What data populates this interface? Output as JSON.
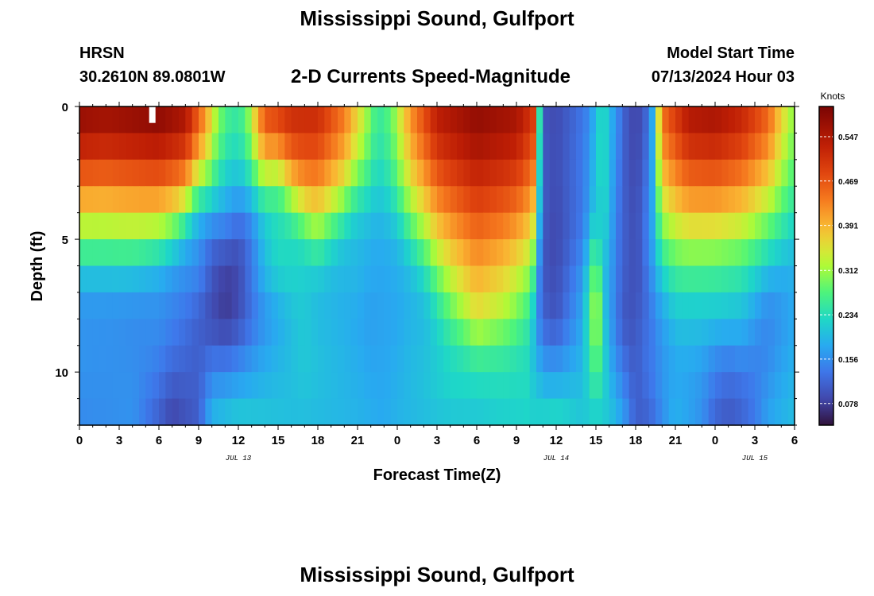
{
  "page": {
    "title_top": "Mississippi Sound, Gulfport",
    "title_bottom": "Mississippi Sound, Gulfport",
    "station_id": "HRSN",
    "station_coords": "30.2610N  89.0801W",
    "plot_title": "2-D Currents Speed-Magnitude",
    "model_label": "Model Start Time",
    "model_value": "07/13/2024 Hour 03"
  },
  "chart_data": {
    "type": "heatmap",
    "title": "2-D Currents Speed-Magnitude",
    "xlabel": "Forecast Time(Z)",
    "ylabel": "Depth (ft)",
    "x_range_hours": [
      0,
      54
    ],
    "x_ticks": [
      {
        "h": 0,
        "label": "0"
      },
      {
        "h": 3,
        "label": "3"
      },
      {
        "h": 6,
        "label": "6"
      },
      {
        "h": 9,
        "label": "9"
      },
      {
        "h": 12,
        "label": "12"
      },
      {
        "h": 15,
        "label": "15"
      },
      {
        "h": 18,
        "label": "18"
      },
      {
        "h": 21,
        "label": "21"
      },
      {
        "h": 24,
        "label": "0"
      },
      {
        "h": 27,
        "label": "3"
      },
      {
        "h": 30,
        "label": "6"
      },
      {
        "h": 33,
        "label": "9"
      },
      {
        "h": 36,
        "label": "12"
      },
      {
        "h": 39,
        "label": "15"
      },
      {
        "h": 42,
        "label": "18"
      },
      {
        "h": 45,
        "label": "21"
      },
      {
        "h": 48,
        "label": "0"
      },
      {
        "h": 51,
        "label": "3"
      },
      {
        "h": 54,
        "label": "6"
      }
    ],
    "date_labels": [
      {
        "h": 12,
        "label": "JUL 13"
      },
      {
        "h": 36,
        "label": "JUL 14"
      },
      {
        "h": 51,
        "label": "JUL 15"
      }
    ],
    "y_range_ft": [
      0,
      12
    ],
    "y_ticks": [
      {
        "v": 0,
        "label": "0"
      },
      {
        "v": 5,
        "label": "5"
      },
      {
        "v": 10,
        "label": "10"
      }
    ],
    "depth_layers": 12,
    "colorbar": {
      "title": "Knots",
      "min": 0.04,
      "max": 0.6,
      "ticks": [
        0.078,
        0.156,
        0.234,
        0.312,
        0.391,
        0.469,
        0.547
      ],
      "tick_labels": [
        "0.078",
        "0.156",
        "0.234",
        "0.312",
        "0.391",
        "0.469",
        "0.547"
      ]
    },
    "knots_surface": [
      [
        0,
        0.58
      ],
      [
        2,
        0.57
      ],
      [
        4,
        0.58
      ],
      [
        6,
        0.59
      ],
      [
        8,
        0.56
      ],
      [
        9.5,
        0.42
      ],
      [
        10.5,
        0.3
      ],
      [
        11.5,
        0.25
      ],
      [
        12.5,
        0.27
      ],
      [
        14,
        0.48
      ],
      [
        16,
        0.52
      ],
      [
        18,
        0.52
      ],
      [
        20,
        0.44
      ],
      [
        21.5,
        0.33
      ],
      [
        22.5,
        0.25
      ],
      [
        23.5,
        0.28
      ],
      [
        25,
        0.42
      ],
      [
        27,
        0.54
      ],
      [
        30,
        0.58
      ],
      [
        33,
        0.56
      ],
      [
        34.3,
        0.5
      ],
      [
        35,
        0.1
      ],
      [
        36,
        0.09
      ],
      [
        37.5,
        0.12
      ],
      [
        38.5,
        0.15
      ],
      [
        39,
        0.2
      ],
      [
        39.5,
        0.24
      ],
      [
        40.5,
        0.16
      ],
      [
        41.5,
        0.09
      ],
      [
        42.5,
        0.09
      ],
      [
        43.2,
        0.16
      ],
      [
        44,
        0.45
      ],
      [
        46,
        0.55
      ],
      [
        48,
        0.56
      ],
      [
        50,
        0.53
      ],
      [
        52,
        0.46
      ],
      [
        53,
        0.37
      ],
      [
        54,
        0.3
      ]
    ],
    "knots_bottom": [
      [
        0,
        0.15
      ],
      [
        4,
        0.16
      ],
      [
        7,
        0.08
      ],
      [
        9,
        0.11
      ],
      [
        10,
        0.2
      ],
      [
        12,
        0.22
      ],
      [
        16,
        0.2
      ],
      [
        21,
        0.19
      ],
      [
        23,
        0.18
      ],
      [
        24,
        0.19
      ],
      [
        27,
        0.2
      ],
      [
        30,
        0.2
      ],
      [
        32,
        0.21
      ],
      [
        34,
        0.22
      ],
      [
        36,
        0.24
      ],
      [
        38,
        0.21
      ],
      [
        40,
        0.21
      ],
      [
        41,
        0.18
      ],
      [
        42,
        0.11
      ],
      [
        43,
        0.11
      ],
      [
        44,
        0.15
      ],
      [
        45,
        0.2
      ],
      [
        47,
        0.16
      ],
      [
        48,
        0.08
      ],
      [
        49,
        0.06
      ],
      [
        50,
        0.1
      ],
      [
        52,
        0.18
      ],
      [
        54,
        0.2
      ]
    ],
    "knots_column_min": [
      [
        0,
        0.17
      ],
      [
        2,
        0.16
      ],
      [
        4,
        0.15
      ],
      [
        6,
        0.15
      ],
      [
        8,
        0.13
      ],
      [
        9,
        0.12
      ],
      [
        10,
        0.08
      ],
      [
        11,
        0.05
      ],
      [
        12,
        0.06
      ],
      [
        13,
        0.1
      ],
      [
        14,
        0.15
      ],
      [
        16,
        0.18
      ],
      [
        18,
        0.18
      ],
      [
        20,
        0.16
      ],
      [
        22,
        0.17
      ],
      [
        24,
        0.17
      ],
      [
        26,
        0.18
      ],
      [
        28,
        0.2
      ],
      [
        30,
        0.2
      ],
      [
        32,
        0.21
      ],
      [
        34,
        0.21
      ],
      [
        34.5,
        0.15
      ],
      [
        35,
        0.09
      ],
      [
        36,
        0.08
      ],
      [
        38,
        0.12
      ],
      [
        39,
        0.18
      ],
      [
        40,
        0.17
      ],
      [
        41,
        0.12
      ],
      [
        42,
        0.09
      ],
      [
        43,
        0.1
      ],
      [
        44,
        0.15
      ],
      [
        46,
        0.16
      ],
      [
        48,
        0.14
      ],
      [
        50,
        0.12
      ],
      [
        52,
        0.14
      ],
      [
        54,
        0.18
      ]
    ],
    "minimum_depth_ft": [
      [
        0,
        9
      ],
      [
        4,
        8.5
      ],
      [
        7,
        7
      ],
      [
        9,
        5
      ],
      [
        11,
        6.8
      ],
      [
        13,
        5
      ],
      [
        15,
        4
      ],
      [
        18,
        7
      ],
      [
        21,
        5
      ],
      [
        24,
        6
      ],
      [
        27,
        9
      ],
      [
        30,
        10.5
      ],
      [
        33,
        10
      ],
      [
        34.3,
        9
      ],
      [
        35,
        6
      ],
      [
        36,
        5
      ],
      [
        38,
        4
      ],
      [
        39,
        3
      ],
      [
        40,
        8
      ],
      [
        41,
        5
      ],
      [
        42,
        6
      ],
      [
        43,
        8
      ],
      [
        45,
        10
      ],
      [
        48,
        11
      ],
      [
        50,
        11.5
      ],
      [
        52,
        9
      ],
      [
        54,
        7
      ]
    ],
    "knots_at_8ft": [
      [
        0,
        0.15
      ],
      [
        3,
        0.16
      ],
      [
        6,
        0.16
      ],
      [
        8,
        0.13
      ],
      [
        10,
        0.09
      ],
      [
        12,
        0.1
      ],
      [
        14,
        0.16
      ],
      [
        17,
        0.22
      ],
      [
        20,
        0.19
      ],
      [
        22,
        0.17
      ],
      [
        24,
        0.18
      ],
      [
        26,
        0.22
      ],
      [
        28,
        0.31
      ],
      [
        30,
        0.37
      ],
      [
        32,
        0.34
      ],
      [
        34,
        0.28
      ],
      [
        35,
        0.12
      ],
      [
        36,
        0.1
      ],
      [
        38,
        0.18
      ],
      [
        39,
        0.34
      ],
      [
        40,
        0.18
      ],
      [
        41,
        0.1
      ],
      [
        42,
        0.1
      ],
      [
        43,
        0.17
      ],
      [
        45,
        0.22
      ],
      [
        48,
        0.21
      ],
      [
        50,
        0.2
      ],
      [
        52,
        0.16
      ],
      [
        54,
        0.18
      ]
    ],
    "surface_marker": {
      "h": 5.5,
      "depth_ft": 0.5
    }
  }
}
